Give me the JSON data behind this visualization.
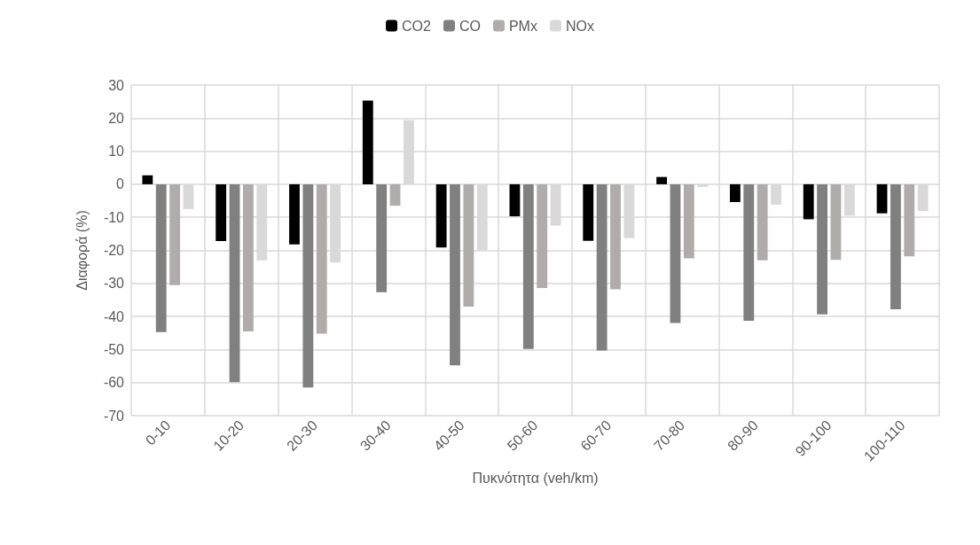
{
  "chart_data": {
    "type": "bar",
    "xlabel": "Πυκνότητα (veh/km)",
    "ylabel": "Διαφορά (%)",
    "categories": [
      "0-10",
      "10-20",
      "20-30",
      "30-40",
      "40-50",
      "50-60",
      "60-70",
      "70-80",
      "80-90",
      "90-100",
      "100-110"
    ],
    "series": [
      {
        "name": "CO2",
        "color": "#000000",
        "values": [
          2.7,
          -17.2,
          -18.2,
          25.3,
          -19.1,
          -9.7,
          -17.1,
          2.2,
          -5.4,
          -10.6,
          -8.8
        ]
      },
      {
        "name": "CO",
        "color": "#808080",
        "values": [
          -44.7,
          -59.9,
          -61.5,
          -32.7,
          -54.8,
          -49.8,
          -50.3,
          -42,
          -41.3,
          -39.4,
          -37.8
        ]
      },
      {
        "name": "PMx",
        "color": "#b0acab",
        "values": [
          -30.5,
          -44.5,
          -45.2,
          -6.5,
          -37,
          -31.4,
          -31.8,
          -22.4,
          -23,
          -22.9,
          -21.8
        ]
      },
      {
        "name": "NOx",
        "color": "#d9d9d9",
        "values": [
          -7.5,
          -23,
          -23.7,
          19.4,
          -19.9,
          -12.5,
          -16.3,
          -0.8,
          -6.2,
          -9.5,
          -8.1
        ]
      }
    ],
    "ylim": [
      -70,
      30
    ],
    "yticks": [
      -70,
      -60,
      -50,
      -40,
      -30,
      -20,
      -10,
      0,
      10,
      20,
      30
    ],
    "grid": true,
    "legend": "top"
  }
}
